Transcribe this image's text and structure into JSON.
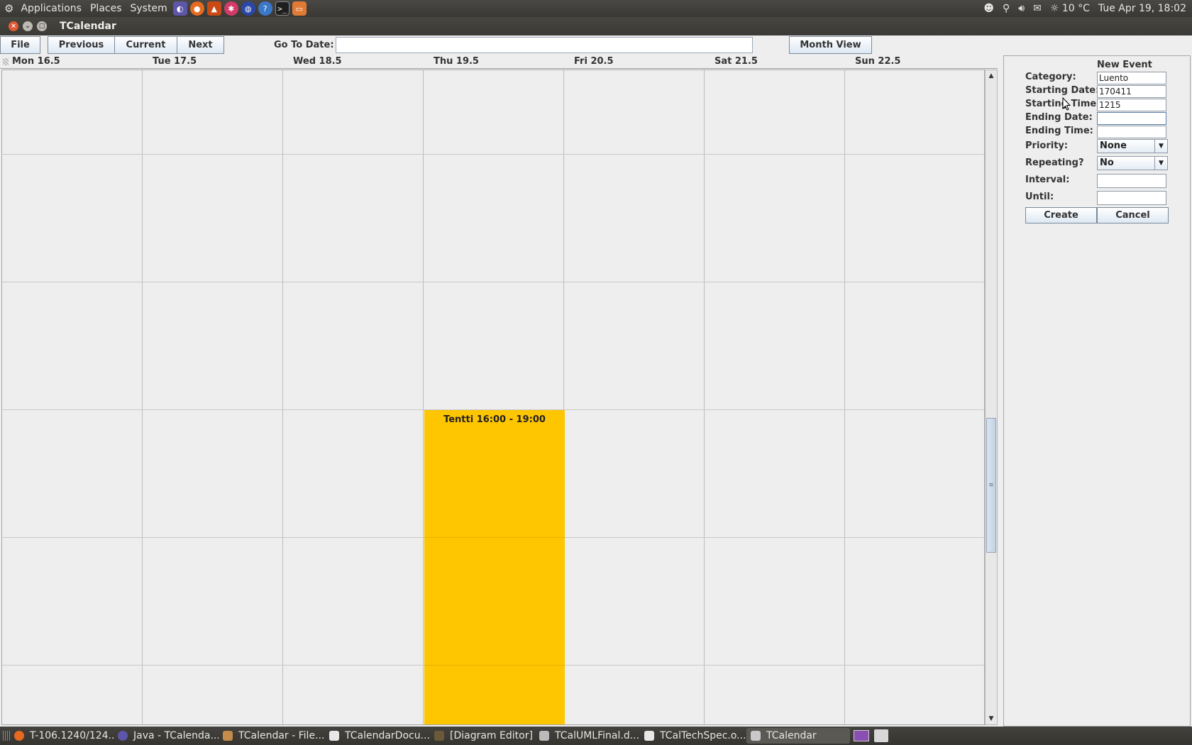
{
  "top_panel": {
    "menus": [
      "Applications",
      "Places",
      "System"
    ],
    "weather": "10 °C",
    "datetime": "Tue Apr 19, 18:02"
  },
  "window": {
    "title": "TCalendar"
  },
  "toolbar": {
    "file_label": "File",
    "previous_label": "Previous",
    "current_label": "Current",
    "next_label": "Next",
    "go_to_date_label": "Go To Date:",
    "go_to_date_value": "",
    "month_view_label": "Month View"
  },
  "week": {
    "days": [
      "Mon 16.5",
      "Tue 17.5",
      "Wed 18.5",
      "Thu 19.5",
      "Fri 20.5",
      "Sat 21.5",
      "Sun 22.5"
    ]
  },
  "event": {
    "label": "Tentti 16:00 - 19:00",
    "color": "#fec600"
  },
  "new_event": {
    "heading": "New Event",
    "category_label": "Category:",
    "category_value": "Luento",
    "starting_date_label": "Starting Date:",
    "starting_date_value": "170411",
    "starting_time_label": "Starting Time:",
    "starting_time_value": "1215",
    "ending_date_label": "Ending Date:",
    "ending_date_value": "",
    "ending_time_label": "Ending Time:",
    "ending_time_value": "",
    "priority_label": "Priority:",
    "priority_value": "None",
    "repeating_label": "Repeating?",
    "repeating_value": "No",
    "interval_label": "Interval:",
    "interval_value": "",
    "until_label": "Until:",
    "until_value": "",
    "create_label": "Create",
    "cancel_label": "Cancel"
  },
  "taskbar": {
    "items": [
      "T-106.1240/124...",
      "Java - TCalenda...",
      "TCalendar - File...",
      "TCalendarDocu...",
      "[Diagram Editor]",
      "TCalUMLFinal.d...",
      "TCalTechSpec.o...",
      "TCalendar"
    ]
  }
}
